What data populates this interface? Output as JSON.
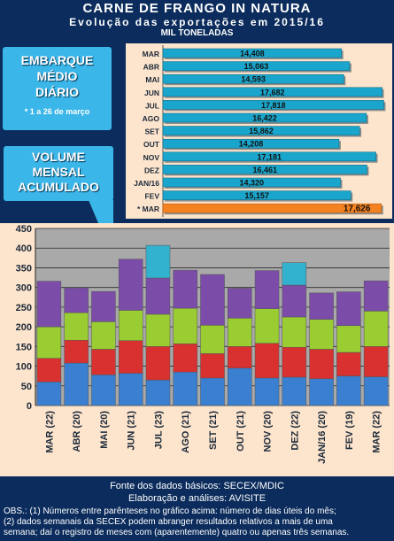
{
  "header": {
    "title": "CARNE DE FRANGO IN NATURA",
    "subtitle": "Evolução das exportações em 2015/16",
    "unit": "MIL TONELADAS"
  },
  "callouts": {
    "daily_title": [
      "EMBARQUE",
      "MÉDIO",
      "DIÁRIO"
    ],
    "daily_note": "* 1 a 26 de março",
    "monthly_title": [
      "VOLUME",
      "MENSAL",
      "ACUMULADO"
    ]
  },
  "chart_data": [
    {
      "type": "bar",
      "orientation": "horizontal",
      "categories": [
        "MAR",
        "ABR",
        "MAI",
        "JUN",
        "JUL",
        "AGO",
        "SET",
        "OUT",
        "NOV",
        "DEZ",
        "JAN/16",
        "FEV",
        "* MAR"
      ],
      "values": [
        14408,
        15063,
        14593,
        17682,
        17818,
        16422,
        15862,
        14208,
        17181,
        16461,
        14320,
        15157,
        17626
      ],
      "value_labels": [
        "14,408",
        "15,063",
        "14,593",
        "17,682",
        "17,818",
        "16,422",
        "15,862",
        "14,208",
        "17,181",
        "16,461",
        "14,320",
        "15,157",
        "17,626"
      ],
      "xlim": [
        0,
        18000
      ],
      "colors": {
        "bar": "#1aa6cc",
        "highlight": "#f58220"
      }
    },
    {
      "type": "bar",
      "stacked": true,
      "categories": [
        "MAR (22)",
        "ABR (20)",
        "MAI (20)",
        "JUN (21)",
        "JUL (23)",
        "AGO (21)",
        "SET (21)",
        "OUT (21)",
        "NOV (20)",
        "DEZ (22)",
        "JAN/16 (20)",
        "FEV (19)",
        "MAR (22)"
      ],
      "series": [
        {
          "color": "#3a7fd0",
          "values": [
            60,
            108,
            78,
            82,
            65,
            85,
            70,
            95,
            70,
            72,
            68,
            75,
            73
          ]
        },
        {
          "color": "#d93030",
          "values": [
            60,
            58,
            65,
            83,
            85,
            72,
            62,
            55,
            88,
            76,
            75,
            60,
            77
          ]
        },
        {
          "color": "#9acd32",
          "values": [
            80,
            70,
            70,
            77,
            82,
            90,
            72,
            72,
            88,
            77,
            76,
            68,
            90
          ]
        },
        {
          "color": "#7b4da8",
          "values": [
            116,
            63,
            77,
            130,
            92,
            97,
            129,
            76,
            97,
            81,
            67,
            86,
            77
          ]
        },
        {
          "color": "#33b2d0",
          "values": [
            0,
            0,
            0,
            0,
            83,
            0,
            0,
            0,
            0,
            57,
            0,
            0,
            0
          ]
        }
      ],
      "ylim": [
        0,
        450
      ],
      "yticks": [
        0,
        50,
        100,
        150,
        200,
        250,
        300,
        350,
        400,
        450
      ],
      "grid": true
    }
  ],
  "footer": {
    "source": "Fonte dos dados básicos: SECEX/MDIC",
    "analysis": "Elaboração e análises: AVISITE",
    "obs1": "OBS.: (1) Números entre parênteses no gráfico acima: número de dias úteis do mês;",
    "obs2": "(2) dados semanais da SECEX podem abranger resultados relativos a mais de uma",
    "obs3": "semana; daí o registro de meses com (aparentemente) quatro ou apenas três semanas."
  }
}
